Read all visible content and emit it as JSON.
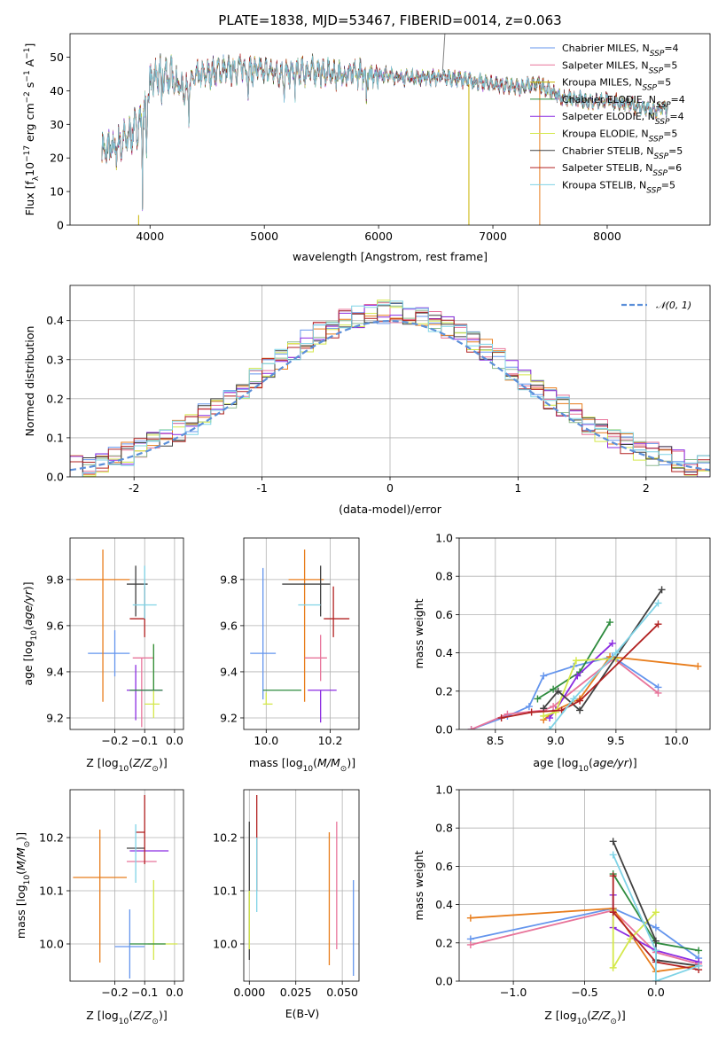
{
  "title": "PLATE=1838, MJD=53467, FIBERID=0014, z=0.063",
  "series_colors": [
    "#6495ed",
    "#e8749a",
    "#c8b400",
    "#2e8b3e",
    "#8b2be2",
    "#d4e84a",
    "#404040",
    "#b22222",
    "#7fd3e6",
    "#e87d1c",
    "#8fbc8f",
    "#808080"
  ],
  "chart_data": [
    {
      "id": "spectrum",
      "type": "line",
      "ylabel": "Flux [f_λ10^-17 erg cm^-2 s^-1 A^-1]",
      "xlabel": "wavelength [Angstrom, rest frame]",
      "xlim": [
        3300,
        8900
      ],
      "ylim": [
        0,
        57
      ],
      "xticks": [
        4000,
        5000,
        6000,
        7000,
        8000
      ],
      "yticks": [
        0,
        10,
        20,
        30,
        40,
        50
      ],
      "legend_position": "top-right",
      "legend": [
        "Chabrier MILES, N_SSP=4",
        "Salpeter MILES, N_SSP=5",
        "Kroupa MILES, N_SSP=5",
        "Chabrier ELODIE, N_SSP=4",
        "Salpeter ELODIE, N_SSP=4",
        "Kroupa ELODIE, N_SSP=5",
        "Chabrier STELIB, N_SSP=5",
        "Salpeter STELIB, N_SSP=6",
        "Kroupa STELIB, N_SSP=5"
      ],
      "continuum": [
        [
          3580,
          22
        ],
        [
          3700,
          23
        ],
        [
          3800,
          26
        ],
        [
          3900,
          30
        ],
        [
          3950,
          32
        ],
        [
          4000,
          42
        ],
        [
          4100,
          45
        ],
        [
          4200,
          44
        ],
        [
          4300,
          40
        ],
        [
          4400,
          44
        ],
        [
          4500,
          45
        ],
        [
          4600,
          46
        ],
        [
          4700,
          46
        ],
        [
          4800,
          47
        ],
        [
          4900,
          46
        ],
        [
          5000,
          46
        ],
        [
          5200,
          45
        ],
        [
          5400,
          46
        ],
        [
          5600,
          45
        ],
        [
          5800,
          45
        ],
        [
          6000,
          45
        ],
        [
          6200,
          44
        ],
        [
          6400,
          44
        ],
        [
          6600,
          44
        ],
        [
          6800,
          43
        ],
        [
          7000,
          42
        ],
        [
          7200,
          41
        ],
        [
          7400,
          42
        ],
        [
          7600,
          38
        ],
        [
          7800,
          37
        ],
        [
          8000,
          37
        ],
        [
          8200,
          36
        ],
        [
          8400,
          34
        ],
        [
          8530,
          35
        ]
      ]
    },
    {
      "id": "residual_histogram",
      "type": "histogram",
      "xlabel": "(data-model)/error",
      "ylabel": "Normed distribution",
      "xlim": [
        -2.5,
        2.5
      ],
      "ylim": [
        0,
        0.49
      ],
      "xticks": [
        -2,
        -1,
        0,
        1,
        2
      ],
      "yticks": [
        0.0,
        0.1,
        0.2,
        0.3,
        0.4
      ],
      "bin_width": 0.1,
      "reference_curve": "N(0,1)",
      "legend": [
        "𝒩(0, 1)"
      ],
      "legend_position": "top-right"
    },
    {
      "id": "age_vs_Z",
      "type": "errorbar",
      "xlabel": "Z [log10(Z/Z⊙)]",
      "ylabel": "age [log10(age/yr)]",
      "xlim": [
        -0.35,
        0.03
      ],
      "ylim": [
        9.15,
        9.98
      ],
      "xticks": [
        -0.2,
        -0.1,
        0.0
      ],
      "xticklabels": [
        "−0.2",
        "−0.1",
        "0.0"
      ],
      "yticks": [
        9.2,
        9.4,
        9.6,
        9.8
      ],
      "points": [
        {
          "x": -0.2,
          "xerr": [
            0.09,
            0.05
          ],
          "y": 9.48,
          "yerr": [
            0.1,
            0.1
          ],
          "c": 0
        },
        {
          "x": -0.11,
          "xerr": [
            0.03,
            0.04
          ],
          "y": 9.46,
          "yerr": [
            0.3,
            0.0
          ],
          "c": 1
        },
        {
          "x": -0.24,
          "xerr": [
            0.09,
            0.09
          ],
          "y": 9.8,
          "yerr": [
            0.53,
            0.13
          ],
          "c": 9
        },
        {
          "x": -0.13,
          "xerr": [
            0.03,
            0.04
          ],
          "y": 9.78,
          "yerr": [
            0.14,
            0.08
          ],
          "c": 6
        },
        {
          "x": -0.13,
          "xerr": [
            0.03,
            0.09
          ],
          "y": 9.32,
          "yerr": [
            0.13,
            0.11
          ],
          "c": 4
        },
        {
          "x": -0.07,
          "xerr": [
            0.03,
            0.02
          ],
          "y": 9.26,
          "yerr": [
            0.06,
            0.26
          ],
          "c": 5
        },
        {
          "x": -0.1,
          "xerr": [
            0.05,
            0.0
          ],
          "y": 9.63,
          "yerr": [
            0.08,
            0.14
          ],
          "c": 7
        },
        {
          "x": -0.1,
          "xerr": [
            0.04,
            0.04
          ],
          "y": 9.69,
          "yerr": [
            0.06,
            0.17
          ],
          "c": 8
        },
        {
          "x": -0.07,
          "xerr": [
            0.08,
            0.03
          ],
          "y": 9.32,
          "yerr": [
            0.0,
            0.2
          ],
          "c": 3
        }
      ]
    },
    {
      "id": "age_vs_mass",
      "type": "errorbar",
      "xlabel": "mass [log10(M/M⊙)]",
      "ylabel": "",
      "xlim": [
        9.93,
        10.29
      ],
      "ylim": [
        9.15,
        9.98
      ],
      "xticks": [
        10.0,
        10.2
      ],
      "yticks": [
        9.2,
        9.4,
        9.6,
        9.8
      ],
      "points": [
        {
          "x": 9.99,
          "xerr": [
            0.04,
            0.04
          ],
          "y": 9.48,
          "yerr": [
            0.2,
            0.37
          ],
          "c": 0
        },
        {
          "x": 10.12,
          "xerr": [
            0.05,
            0.06
          ],
          "y": 9.8,
          "yerr": [
            0.53,
            0.13
          ],
          "c": 9
        },
        {
          "x": 10.17,
          "xerr": [
            0.05,
            0.02
          ],
          "y": 9.46,
          "yerr": [
            0.1,
            0.1
          ],
          "c": 1
        },
        {
          "x": 10.17,
          "xerr": [
            0.12,
            0.03
          ],
          "y": 9.78,
          "yerr": [
            0.14,
            0.08
          ],
          "c": 6
        },
        {
          "x": 10.17,
          "xerr": [
            0.04,
            0.05
          ],
          "y": 9.32,
          "yerr": [
            0.14,
            0.0
          ],
          "c": 4
        },
        {
          "x": 10.0,
          "xerr": [
            0.01,
            0.02
          ],
          "y": 9.26,
          "yerr": [
            0.0,
            0.05
          ],
          "c": 5
        },
        {
          "x": 10.21,
          "xerr": [
            0.03,
            0.05
          ],
          "y": 9.63,
          "yerr": [
            0.08,
            0.14
          ],
          "c": 7
        },
        {
          "x": 10.14,
          "xerr": [
            0.04,
            0.03
          ],
          "y": 9.69,
          "yerr": [
            0.0,
            0.0
          ],
          "c": 8
        },
        {
          "x": 10.06,
          "xerr": [
            0.07,
            0.05
          ],
          "y": 9.32,
          "yerr": [
            0.0,
            0.0
          ],
          "c": 3
        }
      ]
    },
    {
      "id": "weight_vs_age",
      "type": "line",
      "xlabel": "age [log10(age/yr)]",
      "ylabel": "mass weight",
      "xlim": [
        8.2,
        10.28
      ],
      "ylim": [
        0,
        1
      ],
      "xticks": [
        8.5,
        9.0,
        9.5,
        10.0
      ],
      "yticks": [
        0.0,
        0.2,
        0.4,
        0.6,
        0.8,
        1.0
      ],
      "series": [
        {
          "c": 0,
          "x": [
            8.3,
            8.6,
            8.78,
            8.9,
            9.15,
            9.47,
            9.85
          ],
          "y": [
            0.0,
            0.07,
            0.12,
            0.28,
            0.33,
            0.38,
            0.22
          ]
        },
        {
          "c": 1,
          "x": [
            8.3,
            8.6,
            8.9,
            8.98,
            9.48,
            9.85
          ],
          "y": [
            0.0,
            0.08,
            0.1,
            0.12,
            0.37,
            0.19
          ]
        },
        {
          "c": 9,
          "x": [
            8.9,
            9.0,
            9.2,
            9.45,
            10.18
          ],
          "y": [
            0.05,
            0.1,
            0.16,
            0.38,
            0.33
          ]
        },
        {
          "c": 3,
          "x": [
            8.85,
            8.98,
            9.2,
            9.45
          ],
          "y": [
            0.16,
            0.21,
            0.3,
            0.56
          ]
        },
        {
          "c": 4,
          "x": [
            8.95,
            9.0,
            9.18,
            9.47
          ],
          "y": [
            0.06,
            0.1,
            0.28,
            0.45
          ]
        },
        {
          "c": 5,
          "x": [
            8.9,
            9.0,
            9.17,
            9.5
          ],
          "y": [
            0.07,
            0.09,
            0.36,
            0.37
          ]
        },
        {
          "c": 6,
          "x": [
            8.9,
            9.02,
            9.2,
            9.88
          ],
          "y": [
            0.11,
            0.2,
            0.1,
            0.73
          ]
        },
        {
          "c": 7,
          "x": [
            8.55,
            8.8,
            9.05,
            9.2,
            9.85
          ],
          "y": [
            0.06,
            0.09,
            0.1,
            0.15,
            0.55
          ]
        },
        {
          "c": 8,
          "x": [
            8.95,
            9.15,
            9.5,
            9.85
          ],
          "y": [
            0.0,
            0.16,
            0.4,
            0.66
          ]
        }
      ]
    },
    {
      "id": "mass_vs_Z",
      "type": "errorbar",
      "xlabel": "Z [log10(Z/Z⊙)]",
      "ylabel": "mass [log10(M/M⊙)]",
      "xlim": [
        -0.35,
        0.03
      ],
      "ylim": [
        9.93,
        10.29
      ],
      "xticks": [
        -0.2,
        -0.1,
        0.0
      ],
      "xticklabels": [
        "−0.2",
        "−0.1",
        "0.0"
      ],
      "yticks": [
        10.0,
        10.1,
        10.2
      ],
      "points": [
        {
          "x": -0.15,
          "xerr": [
            0.05,
            0.05
          ],
          "y": 9.995,
          "yerr": [
            0.06,
            0.07
          ],
          "c": 0
        },
        {
          "x": -0.12,
          "xerr": [
            0.04,
            0.06
          ],
          "y": 10.155,
          "yerr": [
            0.0,
            0.0
          ],
          "c": 1
        },
        {
          "x": -0.25,
          "xerr": [
            0.09,
            0.09
          ],
          "y": 10.125,
          "yerr": [
            0.16,
            0.09
          ],
          "c": 9
        },
        {
          "x": -0.13,
          "xerr": [
            0.03,
            0.03
          ],
          "y": 10.18,
          "yerr": [
            0.0,
            0.0
          ],
          "c": 6
        },
        {
          "x": -0.12,
          "xerr": [
            0.03,
            0.1
          ],
          "y": 10.175,
          "yerr": [
            0.0,
            0.0
          ],
          "c": 4
        },
        {
          "x": -0.07,
          "xerr": [
            0.02,
            0.08
          ],
          "y": 10.0,
          "yerr": [
            0.03,
            0.12
          ],
          "c": 5
        },
        {
          "x": -0.1,
          "xerr": [
            0.03,
            0.0
          ],
          "y": 10.21,
          "yerr": [
            0.06,
            0.07
          ],
          "c": 7
        },
        {
          "x": -0.13,
          "xerr": [
            0.0,
            0.0
          ],
          "y": 10.195,
          "yerr": [
            0.08,
            0.03
          ],
          "c": 8
        },
        {
          "x": -0.1,
          "xerr": [
            0.05,
            0.07
          ],
          "y": 10.0,
          "yerr": [
            0.0,
            0.0
          ],
          "c": 3
        }
      ]
    },
    {
      "id": "mass_vs_EBV",
      "type": "errorbar",
      "xlabel": "E(B-V)",
      "ylabel": "",
      "xlim": [
        -0.003,
        0.059
      ],
      "ylim": [
        9.93,
        10.29
      ],
      "xticks": [
        0.0,
        0.025,
        0.05
      ],
      "xticklabels": [
        "0.000",
        "0.025",
        "0.050"
      ],
      "yticks": [
        10.0,
        10.1,
        10.2
      ],
      "points": [
        {
          "x": 0.056,
          "y": 10.06,
          "yerr": [
            0.12,
            0.06
          ],
          "c": 0
        },
        {
          "x": 0.047,
          "y": 10.12,
          "yerr": [
            0.13,
            0.11
          ],
          "c": 1
        },
        {
          "x": 0.043,
          "y": 10.1,
          "yerr": [
            0.14,
            0.11
          ],
          "c": 9
        },
        {
          "x": 0.0,
          "y": 10.1,
          "yerr": [
            0.13,
            0.13
          ],
          "c": 6
        },
        {
          "x": 0.0,
          "y": 10.05,
          "yerr": [
            0.06,
            0.05
          ],
          "c": 5
        },
        {
          "x": 0.004,
          "y": 10.2,
          "yerr": [
            0.1,
            0.08
          ],
          "c": 7
        },
        {
          "x": 0.004,
          "y": 10.15,
          "yerr": [
            0.09,
            0.05
          ],
          "c": 8
        }
      ]
    },
    {
      "id": "weight_vs_Z",
      "type": "line",
      "xlabel": "Z [log10(Z/Z⊙)]",
      "ylabel": "mass weight",
      "xlim": [
        -1.38,
        0.38
      ],
      "ylim": [
        0,
        1
      ],
      "xticks": [
        -1.0,
        -0.5,
        0.0
      ],
      "xticklabels": [
        "−1.0",
        "−0.5",
        "0.0"
      ],
      "yticks": [
        0.0,
        0.2,
        0.4,
        0.6,
        0.8,
        1.0
      ],
      "series": [
        {
          "c": 0,
          "x": [
            -1.3,
            -0.3,
            0.0,
            0.3
          ],
          "y": [
            0.22,
            0.38,
            0.28,
            0.12
          ]
        },
        {
          "c": 1,
          "x": [
            -1.3,
            -0.3,
            0.0,
            0.3
          ],
          "y": [
            0.19,
            0.37,
            0.15,
            0.09
          ]
        },
        {
          "c": 9,
          "x": [
            -1.3,
            -0.3,
            0.0,
            0.3
          ],
          "y": [
            0.33,
            0.38,
            0.05,
            0.08
          ]
        },
        {
          "c": 3,
          "x": [
            -0.3,
            0.0,
            0.3
          ],
          "y": [
            0.56,
            0.2,
            0.16
          ]
        },
        {
          "c": 4,
          "x": [
            -0.3,
            -0.3,
            0.0,
            0.3
          ],
          "y": [
            0.45,
            0.28,
            0.16,
            0.1
          ]
        },
        {
          "c": 5,
          "x": [
            -0.3,
            -0.3,
            -0.18,
            0.0
          ],
          "y": [
            0.37,
            0.07,
            0.22,
            0.36
          ]
        },
        {
          "c": 6,
          "x": [
            -0.3,
            0.0,
            0.0,
            0.3
          ],
          "y": [
            0.73,
            0.21,
            0.11,
            0.08
          ]
        },
        {
          "c": 7,
          "x": [
            -0.3,
            -0.3,
            0.0,
            0.3
          ],
          "y": [
            0.55,
            0.36,
            0.1,
            0.06
          ]
        },
        {
          "c": 8,
          "x": [
            -0.3,
            0.0,
            0.0,
            0.3
          ],
          "y": [
            0.66,
            0.16,
            0.0,
            0.08
          ]
        }
      ]
    }
  ]
}
